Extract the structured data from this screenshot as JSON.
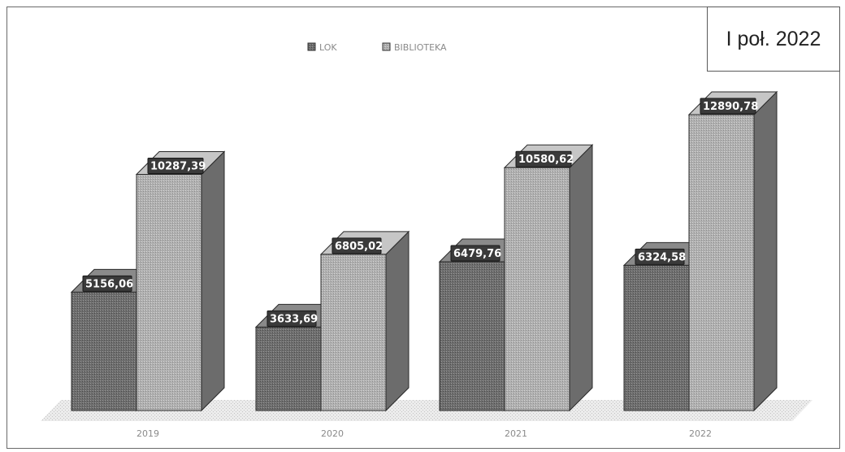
{
  "chart_data": {
    "type": "bar",
    "categories": [
      "2019",
      "2020",
      "2021",
      "2022"
    ],
    "series": [
      {
        "name": "LOK",
        "values": [
          5156.06,
          3633.69,
          6479.76,
          6324.58
        ],
        "labels": [
          "5156,06",
          "3633,69",
          "6479,76",
          "6324,58"
        ],
        "color": "#6e6e6e"
      },
      {
        "name": "BIBLIOTEKA",
        "values": [
          10287.39,
          6805.02,
          10580.62,
          12890.78
        ],
        "labels": [
          "10287,39",
          "6805,02",
          "10580,62",
          "12890,78"
        ],
        "color": "#a9a9a9"
      }
    ],
    "ylim": [
      0,
      14000
    ],
    "legend_position": "top",
    "grid": false,
    "three_d": true
  },
  "period_label": "I poł. 2022"
}
